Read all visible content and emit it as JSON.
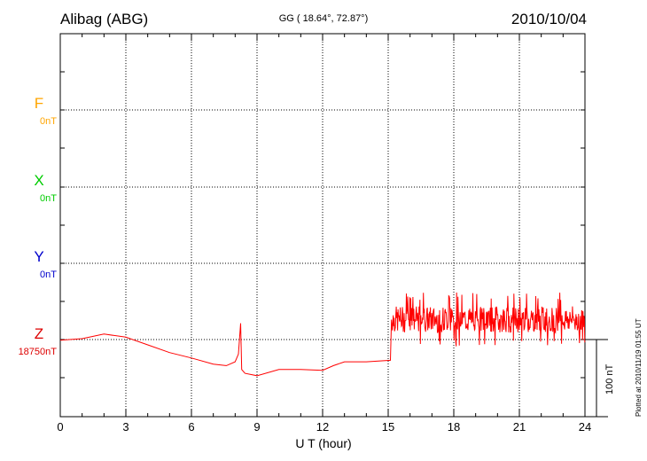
{
  "header": {
    "station": "Alibag (ABG)",
    "coords": "GG ( 18.64°,  72.87°)",
    "date": "2010/10/04"
  },
  "components": [
    {
      "letter": "F",
      "base": "0nT",
      "color": "#ffa500"
    },
    {
      "letter": "X",
      "base": "0nT",
      "color": "#00cc00"
    },
    {
      "letter": "Y",
      "base": "0nT",
      "color": "#0000cc"
    },
    {
      "letter": "Z",
      "base": "18750nT",
      "color": "#dd0000"
    }
  ],
  "scale_bar": {
    "label": "100 nT"
  },
  "plotted_note": "Plotted at 2010/11/19 01:55 UT",
  "chart_data": {
    "type": "line",
    "xlabel": "U T (hour)",
    "xlim": [
      0,
      24
    ],
    "x_ticks": [
      "0",
      "3",
      "6",
      "9",
      "12",
      "15",
      "18",
      "21",
      "24"
    ],
    "y_unit": "nT",
    "grid": true,
    "series": [
      {
        "name": "Z",
        "color": "#ff0000",
        "x": [
          0,
          1,
          2,
          3,
          4,
          5,
          6,
          7,
          7.6,
          8,
          8.15,
          8.25,
          8.3,
          8.45,
          9,
          10,
          11,
          12,
          12.5,
          13,
          14,
          15.1
        ],
        "y": [
          -2,
          0,
          6,
          2,
          -8,
          -18,
          -25,
          -33,
          -35,
          -30,
          -20,
          20,
          -40,
          -45,
          -48,
          -40,
          -40,
          -41,
          -35,
          -30,
          -30,
          -28
        ],
        "noise_x": [
          15.15,
          24
        ],
        "noise_range": [
          -10,
          60
        ],
        "noise_center": 25
      }
    ]
  }
}
